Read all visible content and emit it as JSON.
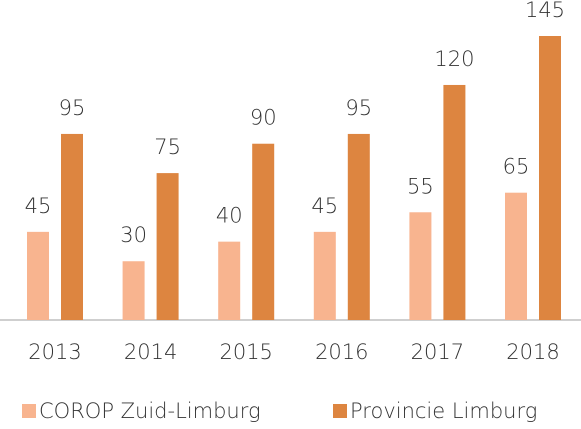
{
  "chart_data": {
    "type": "bar",
    "categories": [
      "2013",
      "2014",
      "2015",
      "2016",
      "2017",
      "2018"
    ],
    "series": [
      {
        "name": "COROP Zuid-Limburg",
        "color": "#f8b48f",
        "values": [
          45,
          30,
          40,
          45,
          55,
          65
        ]
      },
      {
        "name": "Provincie Limburg",
        "color": "#dd8540",
        "values": [
          95,
          75,
          90,
          95,
          120,
          145
        ]
      }
    ],
    "legend": "bottom"
  }
}
